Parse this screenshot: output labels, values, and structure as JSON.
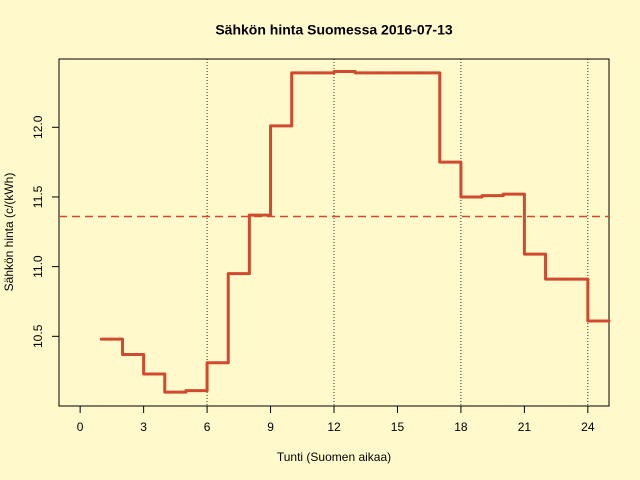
{
  "chart_data": {
    "type": "step",
    "title": "Sähkön hinta Suomessa 2016-07-13",
    "xlabel": "Tunti (Suomen aikaa)",
    "ylabel": "Sähkön hinta (c/(kWh)",
    "x": [
      1,
      2,
      3,
      4,
      5,
      6,
      7,
      8,
      9,
      10,
      11,
      12,
      13,
      14,
      15,
      16,
      17,
      18,
      19,
      20,
      21,
      22,
      23,
      24
    ],
    "values": [
      10.48,
      10.37,
      10.23,
      10.1,
      10.11,
      10.31,
      10.95,
      11.37,
      12.01,
      12.39,
      12.39,
      12.4,
      12.39,
      12.39,
      12.39,
      12.39,
      11.75,
      11.5,
      11.51,
      11.52,
      11.09,
      10.91,
      10.91,
      10.61
    ],
    "color": "#d04a2f",
    "xlim": [
      -1,
      25
    ],
    "ylim": [
      10.0,
      12.49
    ],
    "xticks": [
      0,
      3,
      6,
      9,
      12,
      15,
      18,
      21,
      24
    ],
    "yticks": [
      10.5,
      {
        "value": 11,
        "label": "11.0"
      },
      11.5,
      {
        "value": 12,
        "label": "12.0"
      }
    ],
    "vlines": [
      6,
      12,
      18,
      24
    ],
    "mean": 11.36
  }
}
